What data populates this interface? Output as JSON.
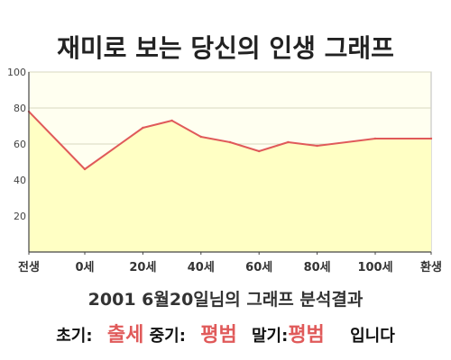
{
  "colors": {
    "line": "#e05a5a",
    "fill": "#ffffc4",
    "plot_bg": "#fffff0",
    "grid": "#d9d9c0",
    "axis": "#444444",
    "highlight": "#e05a5a"
  },
  "chart_data": {
    "type": "area",
    "title": "재미로 보는 당신의 인생 그래프",
    "xlabel": "",
    "ylabel": "",
    "x_ticks": [
      "전생",
      "0세",
      "20세",
      "40세",
      "60세",
      "80세",
      "100세",
      "환생"
    ],
    "y_ticks": [
      "20",
      "40",
      "60",
      "80",
      "100"
    ],
    "ylim": [
      0,
      100
    ],
    "grid": true,
    "legend": "none",
    "points": [
      {
        "x": "전생",
        "y": 78
      },
      {
        "x": "0세",
        "y": 46
      },
      {
        "x": "20세",
        "y": 69
      },
      {
        "x": "30세",
        "y": 73
      },
      {
        "x": "40세",
        "y": 64
      },
      {
        "x": "50세",
        "y": 61
      },
      {
        "x": "60세",
        "y": 56
      },
      {
        "x": "70세",
        "y": 61
      },
      {
        "x": "80세",
        "y": 59
      },
      {
        "x": "100세",
        "y": 63
      },
      {
        "x": "환생",
        "y": 63
      }
    ]
  },
  "summary": "2001 6월20일님의 그래프 분석결과",
  "verdict": {
    "early_label": "초기:",
    "early_value": "출세",
    "mid_label": "중기:",
    "mid_value": "평범",
    "late_label": "말기:",
    "late_value": "평범",
    "suffix": "입니다"
  }
}
